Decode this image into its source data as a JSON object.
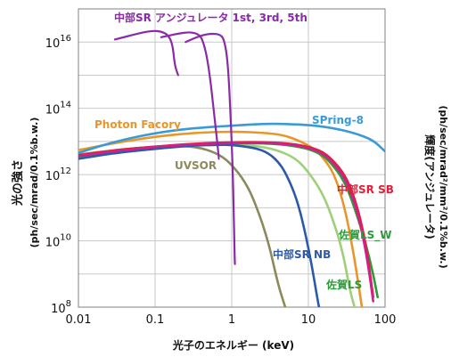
{
  "chart_data": {
    "type": "line",
    "xscale": "log",
    "yscale": "log",
    "xlim": [
      0.01,
      100
    ],
    "ylim": [
      100000000.0,
      1e+17
    ],
    "grid": true,
    "xlabel": "光子のエネルギー (keV)",
    "ylabel_left_line1": "光の強さ",
    "ylabel_left_line2": "(ph/sec/mrad/0.1%b.w.)",
    "ylabel_right_line1": "輝度(アンジュレータ)",
    "ylabel_right_line2": "(ph/sec/mrad²/mm²/0.1%b.w.)",
    "x_ticks": [
      {
        "value": 0.01,
        "label": "0.01"
      },
      {
        "value": 0.1,
        "label": "0.1"
      },
      {
        "value": 1,
        "label": "1"
      },
      {
        "value": 10,
        "label": "10"
      },
      {
        "value": 100,
        "label": "100"
      }
    ],
    "y_ticks": [
      {
        "value": 100000000.0,
        "base": "10",
        "exp": "8"
      },
      {
        "value": 10000000000.0,
        "base": "10",
        "exp": "10"
      },
      {
        "value": 1000000000000.0,
        "base": "10",
        "exp": "12"
      },
      {
        "value": 100000000000000.0,
        "base": "10",
        "exp": "14"
      },
      {
        "value": 1e+16,
        "base": "10",
        "exp": "16"
      }
    ],
    "series": [
      {
        "name": "UVSOR",
        "color": "#8c8a5a",
        "points": [
          [
            0.01,
            4000000000000.0
          ],
          [
            0.03,
            5500000000000.0
          ],
          [
            0.1,
            7000000000000.0
          ],
          [
            0.2,
            7500000000000.0
          ],
          [
            0.4,
            6500000000000.0
          ],
          [
            0.7,
            4000000000000.0
          ],
          [
            1,
            2000000000000.0
          ],
          [
            1.5,
            600000000000.0
          ],
          [
            2,
            150000000000.0
          ],
          [
            3,
            10000000000.0
          ],
          [
            4,
            500000000.0
          ],
          [
            5,
            100000000.0
          ]
        ]
      },
      {
        "name": "Photon Facory",
        "color": "#e8962a",
        "points": [
          [
            0.01,
            5500000000000.0
          ],
          [
            0.03,
            9000000000000.0
          ],
          [
            0.1,
            14000000000000.0
          ],
          [
            0.3,
            18000000000000.0
          ],
          [
            1,
            20000000000000.0
          ],
          [
            3,
            18000000000000.0
          ],
          [
            5,
            15000000000000.0
          ],
          [
            8,
            10000000000000.0
          ],
          [
            12,
            6000000000000.0
          ],
          [
            16,
            3000000000000.0
          ],
          [
            22,
            1000000000000.0
          ],
          [
            30,
            100000000000.0
          ],
          [
            40,
            3000000000.0
          ],
          [
            50,
            100000000.0
          ]
        ]
      },
      {
        "name": "SPring-8",
        "color": "#3a9ad6",
        "points": [
          [
            0.01,
            4500000000000.0
          ],
          [
            0.03,
            10000000000000.0
          ],
          [
            0.1,
            18000000000000.0
          ],
          [
            0.3,
            25000000000000.0
          ],
          [
            1,
            30000000000000.0
          ],
          [
            3,
            35000000000000.0
          ],
          [
            10,
            32000000000000.0
          ],
          [
            20,
            26000000000000.0
          ],
          [
            40,
            18000000000000.0
          ],
          [
            70,
            11000000000000.0
          ],
          [
            100,
            5000000000000.0
          ]
        ]
      },
      {
        "name": "佐賀LS",
        "color": "#9fcf78",
        "points": [
          [
            0.01,
            3000000000000.0
          ],
          [
            0.03,
            4500000000000.0
          ],
          [
            0.1,
            6000000000000.0
          ],
          [
            0.3,
            7500000000000.0
          ],
          [
            1,
            8000000000000.0
          ],
          [
            2,
            7500000000000.0
          ],
          [
            4,
            5500000000000.0
          ],
          [
            7,
            3000000000000.0
          ],
          [
            10,
            1200000000000.0
          ],
          [
            15,
            300000000000.0
          ],
          [
            20,
            60000000000.0
          ],
          [
            28,
            5000000000.0
          ],
          [
            35,
            300000000.0
          ],
          [
            40,
            100000000.0
          ]
        ]
      },
      {
        "name": "佐賀LS_W",
        "color": "#2e9a3c",
        "points": [
          [
            0.01,
            3500000000000.0
          ],
          [
            0.03,
            5000000000000.0
          ],
          [
            0.1,
            6500000000000.0
          ],
          [
            0.3,
            8000000000000.0
          ],
          [
            1,
            9000000000000.0
          ],
          [
            3,
            8800000000000.0
          ],
          [
            6,
            7500000000000.0
          ],
          [
            10,
            6000000000000.0
          ],
          [
            15,
            4000000000000.0
          ],
          [
            20,
            2200000000000.0
          ],
          [
            30,
            600000000000.0
          ],
          [
            40,
            100000000000.0
          ],
          [
            55,
            10000000000.0
          ],
          [
            70,
            1000000000.0
          ],
          [
            80,
            200000000.0
          ]
        ]
      },
      {
        "name": "中部SR SB",
        "color": "#e0203a",
        "points": [
          [
            0.01,
            3800000000000.0
          ],
          [
            0.03,
            5500000000000.0
          ],
          [
            0.1,
            7000000000000.0
          ],
          [
            0.3,
            8500000000000.0
          ],
          [
            1,
            9500000000000.0
          ],
          [
            3,
            9500000000000.0
          ],
          [
            6,
            8500000000000.0
          ],
          [
            10,
            7000000000000.0
          ],
          [
            15,
            5000000000000.0
          ],
          [
            20,
            3000000000000.0
          ],
          [
            30,
            1000000000000.0
          ],
          [
            40,
            200000000000.0
          ],
          [
            50,
            30000000000.0
          ],
          [
            60,
            3000000000.0
          ],
          [
            70,
            200000000.0
          ]
        ]
      },
      {
        "name": "中部SR NB",
        "color": "#2c5aa8",
        "points": [
          [
            0.01,
            3000000000000.0
          ],
          [
            0.03,
            4500000000000.0
          ],
          [
            0.1,
            6000000000000.0
          ],
          [
            0.3,
            7500000000000.0
          ],
          [
            0.7,
            8000000000000.0
          ],
          [
            1,
            7800000000000.0
          ],
          [
            2,
            6500000000000.0
          ],
          [
            3,
            4500000000000.0
          ],
          [
            4,
            2500000000000.0
          ],
          [
            5,
            1200000000000.0
          ],
          [
            7,
            200000000000.0
          ],
          [
            9,
            20000000000.0
          ],
          [
            11,
            2000000000.0
          ],
          [
            13,
            200000000.0
          ],
          [
            14,
            80000000.0
          ]
        ]
      },
      {
        "name": "unlabeled-magenta",
        "color": "#d0208a",
        "points": [
          [
            0.01,
            3600000000000.0
          ],
          [
            0.03,
            5200000000000.0
          ],
          [
            0.1,
            6800000000000.0
          ],
          [
            0.3,
            8200000000000.0
          ],
          [
            1,
            9000000000000.0
          ],
          [
            3,
            9000000000000.0
          ],
          [
            6,
            8000000000000.0
          ],
          [
            10,
            6500000000000.0
          ],
          [
            15,
            4500000000000.0
          ],
          [
            20,
            2600000000000.0
          ],
          [
            30,
            800000000000.0
          ],
          [
            40,
            150000000000.0
          ],
          [
            50,
            20000000000.0
          ],
          [
            60,
            2000000000.0
          ],
          [
            70,
            150000000.0
          ]
        ]
      },
      {
        "name": "中部SR アンジュレータ 1st",
        "color": "#8a2aa6",
        "points": [
          [
            0.03,
            1.2e+16
          ],
          [
            0.06,
            1.8e+16
          ],
          [
            0.09,
            2.2e+16
          ],
          [
            0.12,
            2.1e+16
          ],
          [
            0.15,
            1.6e+16
          ],
          [
            0.17,
            8000000000000000.0
          ],
          [
            0.18,
            2000000000000000.0
          ],
          [
            0.2,
            1000000000000000.0
          ]
        ]
      },
      {
        "name": "中部SR アンジュレータ 3rd",
        "color": "#8a2aa6",
        "points": [
          [
            0.12,
            1.4e+16
          ],
          [
            0.2,
            1.8e+16
          ],
          [
            0.28,
            2e+16
          ],
          [
            0.36,
            1.8e+16
          ],
          [
            0.42,
            1.2e+16
          ],
          [
            0.5,
            2000000000000000.0
          ],
          [
            0.6,
            50000000000000.0
          ],
          [
            0.68,
            3000000000000.0
          ]
        ]
      },
      {
        "name": "中部SR アンジュレータ 5th",
        "color": "#8a2aa6",
        "points": [
          [
            0.25,
            1e+16
          ],
          [
            0.4,
            1.6e+16
          ],
          [
            0.55,
            1.8e+16
          ],
          [
            0.7,
            1.7e+16
          ],
          [
            0.8,
            1.2e+16
          ],
          [
            0.9,
            2000000000000000.0
          ],
          [
            1.0,
            10000000000000.0
          ],
          [
            1.05,
            300000000000.0
          ],
          [
            1.08,
            10000000000.0
          ],
          [
            1.1,
            2000000000.0
          ]
        ]
      }
    ],
    "annotations": [
      {
        "id": "undulator",
        "text": "中部SR アンジュレータ 1st, 3rd, 5th",
        "color": "#8a2aa6"
      },
      {
        "id": "photon",
        "text": "Photon Facory",
        "color": "#e8962a"
      },
      {
        "id": "spring8",
        "text": "SPring-8",
        "color": "#3a9ad6"
      },
      {
        "id": "uvsor",
        "text": "UVSOR",
        "color": "#8c8a5a"
      },
      {
        "id": "sb",
        "text": "中部SR SB",
        "color": "#e0203a"
      },
      {
        "id": "saga_w",
        "text": "佐賀LS_W",
        "color": "#2e9a3c"
      },
      {
        "id": "nb",
        "text": "中部SR NB",
        "color": "#2c5aa8"
      },
      {
        "id": "saga",
        "text": "佐賀LS",
        "color": "#2e9a3c"
      }
    ]
  }
}
